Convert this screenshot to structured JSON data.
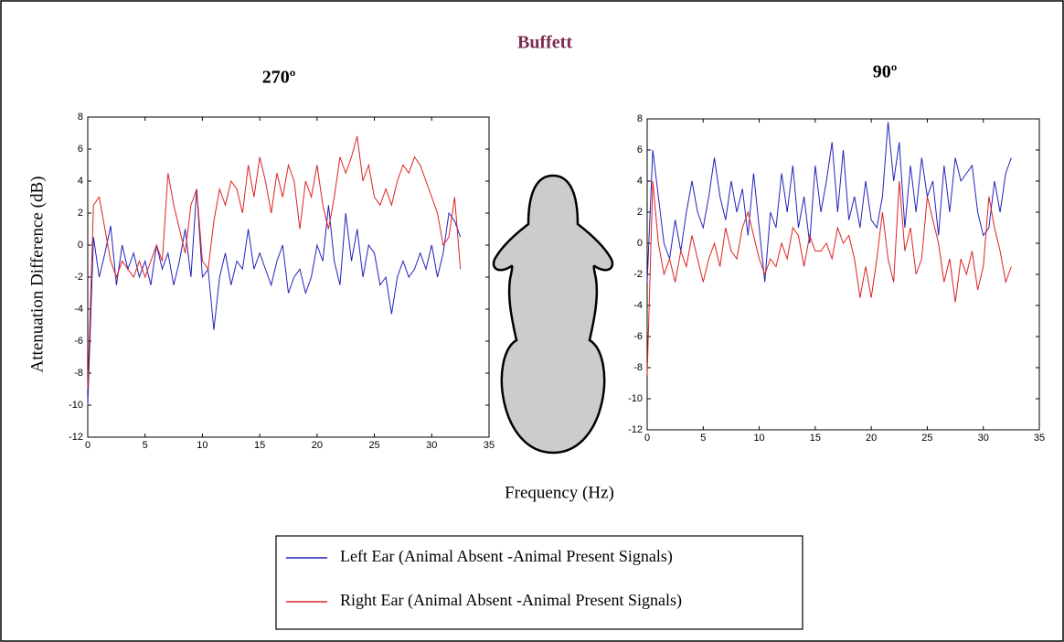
{
  "title": "Buffett",
  "y_label": "Attenuation Difference (dB)",
  "x_label": "Frequency (Hz)",
  "chart_data": [
    {
      "type": "line",
      "title": "270º",
      "xlim": [
        0,
        35
      ],
      "ylim": [
        -12,
        8
      ],
      "xticks": [
        0,
        5,
        10,
        15,
        20,
        25,
        30,
        35
      ],
      "yticks": [
        -12,
        -10,
        -8,
        -6,
        -4,
        -2,
        0,
        2,
        4,
        6,
        8
      ],
      "x": [
        0,
        0.5,
        1,
        1.5,
        2,
        2.5,
        3,
        3.5,
        4,
        4.5,
        5,
        5.5,
        6,
        6.5,
        7,
        7.5,
        8,
        8.5,
        9,
        9.5,
        10,
        10.5,
        11,
        11.5,
        12,
        12.5,
        13,
        13.5,
        14,
        14.5,
        15,
        15.5,
        16,
        16.5,
        17,
        17.5,
        18,
        18.5,
        19,
        19.5,
        20,
        20.5,
        21,
        21.5,
        22,
        22.5,
        23,
        23.5,
        24,
        24.5,
        25,
        25.5,
        26,
        26.5,
        27,
        27.5,
        28,
        28.5,
        29,
        29.5,
        30,
        30.5,
        31,
        31.5,
        32,
        32.5
      ],
      "series": [
        {
          "name": "Left Ear (Animal Absent -Animal Present Signals)",
          "color": "#2222bb",
          "values": [
            -10,
            0.5,
            -2,
            -0.5,
            1.2,
            -2.5,
            0,
            -1.5,
            -0.5,
            -2,
            -1,
            -2.5,
            0,
            -1.5,
            -0.5,
            -2.5,
            -1,
            1,
            -2,
            3.5,
            -2,
            -1.5,
            -5.3,
            -2,
            -0.5,
            -2.5,
            -1,
            -1.5,
            1,
            -1.5,
            -0.5,
            -1.5,
            -2.5,
            -1,
            0,
            -3,
            -2,
            -1.5,
            -3,
            -2,
            0,
            -1,
            2.5,
            -1,
            -2.5,
            2,
            -1,
            1,
            -2,
            0,
            -0.5,
            -2.5,
            -2,
            -4.3,
            -2,
            -1,
            -2,
            -1.5,
            -0.5,
            -1.5,
            0,
            -2,
            -0.5,
            2,
            1.5,
            0.5
          ]
        },
        {
          "name": "Right Ear (Animal Absent -Animal Present Signals)",
          "color": "#dd2222",
          "values": [
            -9,
            2.5,
            3,
            1,
            -1,
            -2,
            -1,
            -1.5,
            -2,
            -1,
            -2,
            -1,
            0,
            -1,
            4.5,
            2.5,
            1,
            -0.5,
            2.5,
            3.5,
            -1,
            -1.5,
            1.5,
            3.5,
            2.5,
            4,
            3.5,
            2,
            5,
            3,
            5.5,
            4,
            2,
            4.5,
            3,
            5,
            4,
            1,
            4,
            3,
            5,
            2.5,
            1,
            3,
            5.5,
            4.5,
            5.5,
            6.8,
            4,
            5,
            3,
            2.5,
            3.5,
            2.5,
            4,
            5,
            4.5,
            5.5,
            5,
            4,
            3,
            2,
            0,
            0.5,
            3,
            -1.5
          ]
        }
      ]
    },
    {
      "type": "line",
      "title": "90º",
      "xlim": [
        0,
        35
      ],
      "ylim": [
        -12,
        8
      ],
      "xticks": [
        0,
        5,
        10,
        15,
        20,
        25,
        30,
        35
      ],
      "yticks": [
        -12,
        -10,
        -8,
        -6,
        -4,
        -2,
        0,
        2,
        4,
        6,
        8
      ],
      "x": [
        0,
        0.5,
        1,
        1.5,
        2,
        2.5,
        3,
        3.5,
        4,
        4.5,
        5,
        5.5,
        6,
        6.5,
        7,
        7.5,
        8,
        8.5,
        9,
        9.5,
        10,
        10.5,
        11,
        11.5,
        12,
        12.5,
        13,
        13.5,
        14,
        14.5,
        15,
        15.5,
        16,
        16.5,
        17,
        17.5,
        18,
        18.5,
        19,
        19.5,
        20,
        20.5,
        21,
        21.5,
        22,
        22.5,
        23,
        23.5,
        24,
        24.5,
        25,
        25.5,
        26,
        26.5,
        27,
        27.5,
        28,
        28.5,
        29,
        29.5,
        30,
        30.5,
        31,
        31.5,
        32,
        32.5
      ],
      "series": [
        {
          "color": "#2222bb",
          "values": [
            -2.5,
            6,
            3,
            0,
            -1,
            1.5,
            -0.5,
            2,
            4,
            2,
            1,
            3,
            5.5,
            3,
            1.5,
            4,
            2,
            3.5,
            0.5,
            4.5,
            1,
            -2.5,
            2,
            1,
            4.5,
            2,
            5,
            1,
            3,
            0,
            5,
            2,
            4,
            6.5,
            2,
            6,
            1.5,
            3,
            1,
            4,
            1.5,
            1,
            3,
            7.8,
            4,
            6.5,
            1,
            5,
            2,
            5.5,
            3,
            4,
            0.5,
            5,
            2,
            5.5,
            4,
            4.5,
            5,
            2,
            0.5,
            1,
            4,
            2,
            4.5,
            5.5
          ]
        },
        {
          "color": "#dd2222",
          "values": [
            -8.5,
            4,
            0,
            -2,
            -1,
            -2.5,
            -0.5,
            -1.5,
            0.5,
            -1,
            -2.5,
            -1,
            0,
            -1.5,
            1,
            -0.5,
            -1,
            1,
            2,
            0.5,
            -1,
            -2,
            -1,
            -1.5,
            0,
            -1,
            1,
            0.5,
            -1.5,
            0.5,
            -0.5,
            -0.5,
            0,
            -1,
            1,
            0,
            0.5,
            -1,
            -3.5,
            -1.5,
            -3.5,
            -1,
            2,
            -1,
            -2.5,
            4,
            -0.5,
            1,
            -2,
            -1,
            3,
            1.5,
            0,
            -2.5,
            -1,
            -3.8,
            -1,
            -2,
            -0.5,
            -3,
            -1.5,
            3,
            1,
            -0.5,
            -2.5,
            -1.5
          ]
        }
      ]
    }
  ]
}
